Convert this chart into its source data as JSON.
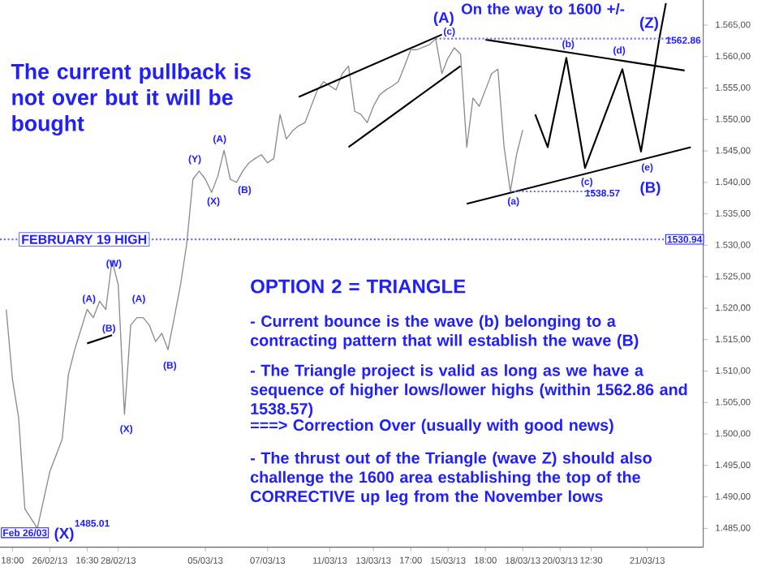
{
  "chart_data": {
    "type": "line",
    "ylim": [
      1482,
      1569
    ],
    "yticks": [
      {
        "value": 1485,
        "label": "1.485,00"
      },
      {
        "value": 1490,
        "label": "1.490,00"
      },
      {
        "value": 1495,
        "label": "1.495,00"
      },
      {
        "value": 1500,
        "label": "1.500,00"
      },
      {
        "value": 1505,
        "label": "1.505,00"
      },
      {
        "value": 1510,
        "label": "1.510,00"
      },
      {
        "value": 1515,
        "label": "1.515,00"
      },
      {
        "value": 1520,
        "label": "1.520,00"
      },
      {
        "value": 1525,
        "label": "1.525,00"
      },
      {
        "value": 1530,
        "label": "1.530,00"
      },
      {
        "value": 1535,
        "label": "1.535,00"
      },
      {
        "value": 1540,
        "label": "1.540,00"
      },
      {
        "value": 1545,
        "label": "1.545,00"
      },
      {
        "value": 1550,
        "label": "1.550,00"
      },
      {
        "value": 1555,
        "label": "1.555,00"
      },
      {
        "value": 1560,
        "label": "1.560,00"
      },
      {
        "value": 1565,
        "label": "1.565,00"
      }
    ],
    "categories": [
      null,
      null,
      "18:00",
      null,
      null,
      null,
      null,
      null,
      "26/02/13",
      null,
      null,
      null,
      null,
      null,
      "16:30",
      null,
      null,
      null,
      null,
      "28/02/13",
      null,
      null,
      null,
      null,
      null,
      null,
      null,
      null,
      null,
      null,
      null,
      null,
      null,
      "05/03/13",
      null,
      null,
      null,
      null,
      null,
      null,
      null,
      null,
      null,
      "07/03/13",
      null,
      null,
      null,
      null,
      null,
      null,
      null,
      null,
      null,
      "11/03/13",
      null,
      null,
      null,
      null,
      null,
      null,
      "13/03/13",
      null,
      null,
      null,
      null,
      null,
      "17:00",
      null,
      null,
      null,
      null,
      null,
      "15/03/13",
      null,
      null,
      null,
      null,
      null,
      "18:00",
      null,
      null,
      null,
      null,
      null,
      "18/03/13",
      null,
      null,
      null,
      null,
      null,
      "20/03/13",
      null,
      null,
      null,
      null,
      "12:30",
      null,
      null,
      null,
      null,
      null,
      null,
      null,
      null,
      "21/03/13",
      null,
      null,
      null,
      null,
      null,
      null,
      null,
      null,
      null
    ],
    "marker": "none",
    "series": [
      {
        "color": "#8c8c8c",
        "values": [
          null,
          1519.8,
          1508.7,
          1502.5,
          1488.1,
          null,
          1485.01,
          null,
          1494.0,
          1496.6,
          1499.2,
          1509.5,
          1513.4,
          null,
          1519.8,
          1518.5,
          1521.1,
          1519.8,
          1527.6,
          1523.7,
          1503.1,
          1517.3,
          1518.5,
          1518.5,
          1517.3,
          1514.7,
          1516.0,
          1513.4,
          1518.5,
          1523.7,
          1530.2,
          1540.5,
          1541.8,
          1540.5,
          1538.4,
          1541.0,
          1545.1,
          1540.5,
          1540.0,
          1541.8,
          1543.1,
          1543.8,
          1544.4,
          1543.1,
          1543.8,
          1550.8,
          1546.9,
          1548.2,
          1549.0,
          1549.5,
          1552.1,
          1554.7,
          1556.0,
          null,
          1554.7,
          1557.3,
          1558.5,
          1551.3,
          1550.8,
          1549.5,
          1552.1,
          1553.9,
          1554.7,
          1555.3,
          1556.0,
          1558.5,
          1561.1,
          1561.1,
          1561.5,
          1561.9,
          1562.86,
          1557.3,
          1559.8,
          1561.4,
          1560.4,
          1545.6,
          1553.4,
          1552.1,
          1554.7,
          1557.3,
          1558.0,
          1545.6,
          1538.57,
          1544.4,
          1548.34,
          null,
          null,
          null,
          null,
          null,
          null,
          null,
          null,
          null,
          null,
          null,
          null,
          null,
          null,
          null,
          null,
          null,
          null,
          null,
          null,
          null,
          null,
          null,
          null,
          null,
          null,
          null,
          null,
          null
        ]
      },
      {
        "color": "#000000",
        "values": [
          null,
          null,
          null,
          null,
          null,
          null,
          null,
          null,
          null,
          null,
          null,
          null,
          null,
          null,
          null,
          null,
          null,
          null,
          null,
          null,
          null,
          null,
          null,
          null,
          null,
          null,
          null,
          null,
          null,
          null,
          null,
          null,
          null,
          null,
          null,
          null,
          null,
          null,
          null,
          null,
          null,
          null,
          null,
          null,
          null,
          null,
          null,
          null,
          null,
          null,
          null,
          null,
          null,
          null,
          null,
          null,
          null,
          null,
          null,
          null,
          null,
          null,
          null,
          null,
          null,
          null,
          null,
          null,
          null,
          null,
          null,
          null,
          null,
          null,
          null,
          null,
          null,
          null,
          null,
          null,
          null,
          null,
          null,
          null,
          null,
          null,
          1550.8,
          null,
          1545.6,
          null,
          null,
          1559.8,
          null,
          null,
          1542.3,
          null,
          null,
          null,
          null,
          null,
          1558.0,
          null,
          null,
          1544.9,
          null,
          null,
          1563.2,
          1568.5,
          null,
          null,
          null,
          null,
          null,
          null
        ]
      },
      {
        "color": "#000000",
        "values": [
          null,
          null,
          null,
          null,
          null,
          null,
          null,
          null,
          null,
          null,
          null,
          null,
          null,
          null,
          null,
          null,
          null,
          null,
          null,
          null,
          null,
          null,
          null,
          null,
          null,
          null,
          null,
          null,
          null,
          null,
          null,
          null,
          null,
          null,
          null,
          null,
          null,
          null,
          null,
          null,
          null,
          null,
          null,
          null,
          null,
          null,
          null,
          null,
          1553.6,
          null,
          null,
          null,
          null,
          null,
          null,
          null,
          null,
          null,
          null,
          null,
          null,
          null,
          null,
          null,
          null,
          null,
          null,
          null,
          null,
          null,
          null,
          1563.5,
          null,
          null,
          null,
          null,
          null,
          null,
          null,
          null,
          null,
          null,
          null,
          null,
          null,
          null,
          null,
          null,
          null,
          null,
          null,
          null,
          null,
          null,
          null,
          null,
          null,
          null,
          null,
          null,
          null,
          null,
          null,
          null,
          null,
          null,
          null,
          null,
          null,
          null,
          null,
          null,
          null,
          null
        ]
      },
      {
        "color": "#000000",
        "values": [
          null,
          null,
          null,
          null,
          null,
          null,
          null,
          null,
          null,
          null,
          null,
          null,
          null,
          null,
          null,
          null,
          null,
          null,
          null,
          null,
          null,
          null,
          null,
          null,
          null,
          null,
          null,
          null,
          null,
          null,
          null,
          null,
          null,
          null,
          null,
          null,
          null,
          null,
          null,
          null,
          null,
          null,
          null,
          null,
          null,
          null,
          null,
          null,
          null,
          null,
          null,
          null,
          null,
          null,
          null,
          null,
          1545.6,
          null,
          null,
          null,
          null,
          null,
          null,
          null,
          null,
          null,
          null,
          null,
          null,
          null,
          null,
          null,
          null,
          null,
          1558.5,
          null,
          null,
          null,
          null,
          null,
          null,
          null,
          null,
          null,
          null,
          null,
          null,
          null,
          null,
          null,
          null,
          null,
          null,
          null,
          null,
          null,
          null,
          null,
          null,
          null,
          null,
          null,
          null,
          null,
          null,
          null,
          null,
          null,
          null,
          null,
          null,
          null,
          null,
          null
        ]
      },
      {
        "color": "#000000",
        "values": [
          null,
          null,
          null,
          null,
          null,
          null,
          null,
          null,
          null,
          null,
          null,
          null,
          null,
          null,
          null,
          null,
          null,
          null,
          null,
          null,
          null,
          null,
          null,
          null,
          null,
          null,
          null,
          null,
          null,
          null,
          null,
          null,
          null,
          null,
          null,
          null,
          null,
          null,
          null,
          null,
          null,
          null,
          null,
          null,
          null,
          null,
          null,
          null,
          null,
          null,
          null,
          null,
          null,
          null,
          null,
          null,
          null,
          null,
          null,
          null,
          null,
          null,
          null,
          null,
          null,
          null,
          null,
          null,
          null,
          null,
          null,
          null,
          null,
          null,
          null,
          null,
          null,
          null,
          1562.7,
          null,
          null,
          null,
          null,
          null,
          null,
          null,
          null,
          null,
          null,
          null,
          null,
          null,
          null,
          null,
          null,
          null,
          null,
          null,
          null,
          null,
          null,
          null,
          null,
          null,
          null,
          null,
          null,
          null,
          null,
          null,
          1557.8,
          null,
          null,
          null
        ]
      },
      {
        "color": "#000000",
        "values": [
          null,
          null,
          null,
          null,
          null,
          null,
          null,
          null,
          null,
          null,
          null,
          null,
          null,
          null,
          null,
          null,
          null,
          null,
          null,
          null,
          null,
          null,
          null,
          null,
          null,
          null,
          null,
          null,
          null,
          null,
          null,
          null,
          null,
          null,
          null,
          null,
          null,
          null,
          null,
          null,
          null,
          null,
          null,
          null,
          null,
          null,
          null,
          null,
          null,
          null,
          null,
          null,
          null,
          null,
          null,
          null,
          null,
          null,
          null,
          null,
          null,
          null,
          null,
          null,
          null,
          null,
          null,
          null,
          null,
          null,
          null,
          null,
          null,
          null,
          null,
          1536.6,
          null,
          null,
          null,
          null,
          null,
          null,
          null,
          null,
          null,
          null,
          null,
          null,
          null,
          null,
          null,
          null,
          null,
          null,
          null,
          null,
          null,
          null,
          null,
          null,
          null,
          null,
          null,
          null,
          null,
          null,
          null,
          null,
          null,
          null,
          null,
          1545.6,
          null,
          null
        ]
      },
      {
        "color": "#000000",
        "values": [
          null,
          null,
          null,
          null,
          null,
          null,
          null,
          null,
          null,
          null,
          null,
          null,
          null,
          null,
          1514.4,
          null,
          null,
          null,
          1515.7,
          null,
          null,
          null,
          null,
          null,
          null,
          null,
          null,
          null,
          null,
          null,
          null,
          null,
          null,
          null,
          null,
          null,
          null,
          null,
          null,
          null,
          null,
          null,
          null,
          null,
          null,
          null,
          null,
          null,
          null,
          null,
          null,
          null,
          null,
          null,
          null,
          null,
          null,
          null,
          null,
          null,
          null,
          null,
          null,
          null,
          null,
          null,
          null,
          null,
          null,
          null,
          null,
          null,
          null,
          null,
          null,
          null,
          null,
          null,
          null,
          null,
          null,
          null,
          null,
          null,
          null,
          null,
          null,
          null,
          null,
          null,
          null,
          null,
          null,
          null,
          null,
          null,
          null,
          null,
          null,
          null,
          null,
          null,
          null,
          null,
          null,
          null,
          null,
          null,
          null,
          null,
          null,
          null,
          null,
          null
        ]
      },
      {
        "color": "#7070ff",
        "line_style": "dotted",
        "values": [
          null,
          null,
          null,
          null,
          null,
          null,
          null,
          null,
          null,
          null,
          null,
          null,
          null,
          null,
          null,
          null,
          null,
          null,
          null,
          null,
          null,
          null,
          null,
          null,
          null,
          null,
          null,
          null,
          null,
          null,
          null,
          null,
          null,
          null,
          null,
          null,
          null,
          null,
          null,
          null,
          null,
          null,
          null,
          null,
          null,
          null,
          null,
          null,
          null,
          null,
          null,
          null,
          null,
          null,
          null,
          null,
          null,
          null,
          null,
          null,
          null,
          null,
          null,
          null,
          null,
          null,
          null,
          null,
          null,
          null,
          1562.86,
          null,
          null,
          null,
          null,
          null,
          null,
          null,
          null,
          null,
          null,
          null,
          null,
          null,
          null,
          null,
          null,
          null,
          null,
          null,
          null,
          null,
          null,
          null,
          null,
          null,
          null,
          null,
          null,
          null,
          null,
          null,
          null,
          null,
          null,
          null,
          null,
          null,
          1562.86,
          null,
          null,
          null,
          null,
          null
        ]
      },
      {
        "color": "#7070ff",
        "line_style": "dotted",
        "values": [
          null,
          null,
          null,
          null,
          null,
          null,
          null,
          null,
          null,
          null,
          null,
          null,
          null,
          null,
          null,
          null,
          null,
          null,
          null,
          null,
          null,
          null,
          null,
          null,
          null,
          null,
          null,
          null,
          null,
          null,
          null,
          null,
          null,
          null,
          null,
          null,
          null,
          null,
          null,
          null,
          null,
          null,
          null,
          null,
          null,
          null,
          null,
          null,
          null,
          null,
          null,
          null,
          null,
          null,
          null,
          null,
          null,
          null,
          null,
          null,
          null,
          null,
          null,
          null,
          null,
          null,
          null,
          null,
          null,
          null,
          null,
          null,
          null,
          null,
          null,
          null,
          null,
          null,
          null,
          null,
          null,
          null,
          1538.57,
          null,
          null,
          null,
          null,
          null,
          null,
          null,
          null,
          null,
          null,
          null,
          null,
          null,
          1538.57,
          null,
          null,
          null,
          null,
          null,
          null,
          null,
          null,
          null,
          null,
          null,
          null,
          null,
          null,
          null,
          null,
          null
        ]
      }
    ],
    "ref_lines": [
      {
        "axis": "y",
        "value": 1530.94,
        "label": "FEBRUARY 19 HIGH",
        "color": "#7070ff",
        "line_style": "dotted"
      }
    ],
    "annotations": [
      "The current pullback is not over but it will be bought",
      "OPTION 2 = TRIANGLE",
      "- Current bounce is the wave (b) belonging to a contracting pattern that will establish the wave (B)",
      "- The Triangle project is valid as long as we have a sequence of higher lows/lower highs (within 1562.86 and 1538.57)",
      "===> Correction Over (usually with good news)",
      "- The thrust out of the Triangle (wave Z) should also challenge the 1600 area establishing the top of the CORRECTIVE up leg from the November lows",
      "On the way to 1600 +/-",
      "1530.94",
      "(X)",
      "1485.01",
      "Feb 26/03",
      "(W)",
      "(A)",
      "(B)",
      "(X)",
      "(A)",
      "(B)",
      "(Y)",
      "(X)",
      "(A)",
      "(B)",
      "(A)",
      "(c)",
      "(a)",
      "(b)",
      "(c)",
      "(d)",
      "(e)",
      "(Z)",
      "(B)",
      "1562.86",
      "1538.57"
    ]
  }
}
